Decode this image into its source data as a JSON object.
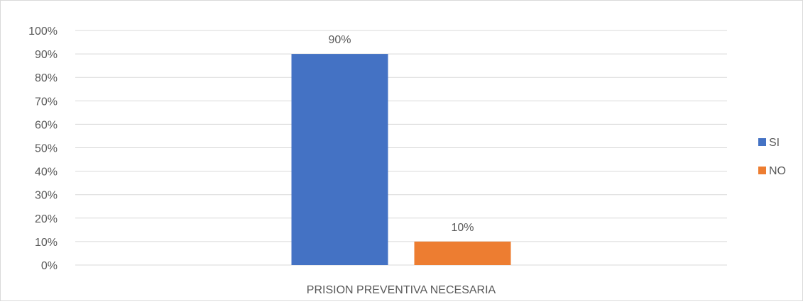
{
  "chart_data": {
    "type": "bar",
    "categories": [
      "PRISION PREVENTIVA NECESARIA"
    ],
    "series": [
      {
        "name": "SI",
        "values": [
          90
        ],
        "color": "#4472C4",
        "data_label": "90%"
      },
      {
        "name": "NO",
        "values": [
          10
        ],
        "color": "#ED7D31",
        "data_label": "10%"
      }
    ],
    "y_ticks": [
      "0%",
      "10%",
      "20%",
      "30%",
      "40%",
      "50%",
      "60%",
      "70%",
      "80%",
      "90%",
      "100%"
    ],
    "ylim": [
      0,
      100
    ],
    "grid": true,
    "legend_position": "right",
    "title": "",
    "xlabel": "",
    "ylabel": ""
  }
}
